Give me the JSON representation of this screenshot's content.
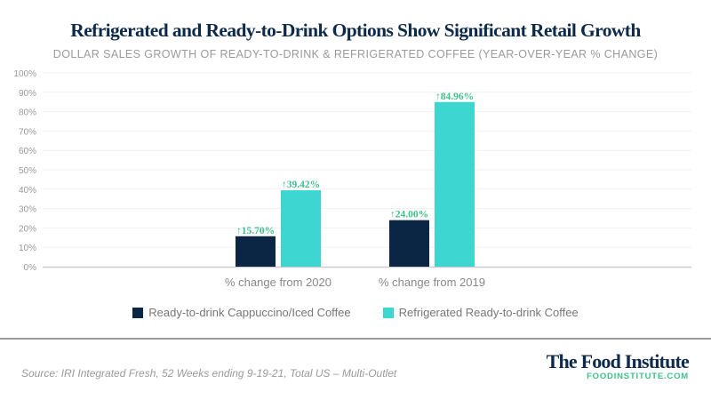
{
  "chart_data": {
    "type": "bar",
    "title": "Refrigerated and Ready-to-Drink Options Show Significant Retail Growth",
    "subtitle": "DOLLAR SALES GROWTH OF READY-TO-DRINK & REFRIGERATED COFFEE (YEAR-OVER-YEAR % CHANGE)",
    "categories": [
      "% change from 2020",
      "% change from 2019"
    ],
    "series": [
      {
        "name": "Ready-to-drink Cappuccino/Iced Coffee",
        "values": [
          15.7,
          24.0
        ],
        "color": "#0b2545",
        "labels": [
          "↑15.70%",
          "↑24.00%"
        ]
      },
      {
        "name": "Refrigerated Ready-to-drink Coffee",
        "values": [
          39.42,
          84.96
        ],
        "color": "#3dd6d0",
        "labels": [
          "↑39.42%",
          "↑84.96%"
        ]
      }
    ],
    "ylim": [
      0,
      100
    ],
    "yticks": [
      "0%",
      "10%",
      "20%",
      "30%",
      "40%",
      "50%",
      "60%",
      "70%",
      "80%",
      "90%",
      "100%"
    ],
    "grid": true,
    "legend": "bottom",
    "label_color": "#3fbf8a"
  },
  "footer": {
    "source": "Source: IRI Integrated Fresh, 52 Weeks ending 9-19-21, Total US – Multi-Outlet",
    "brand": "The Food Institute",
    "url": "FOODINSTITUTE.COM"
  }
}
